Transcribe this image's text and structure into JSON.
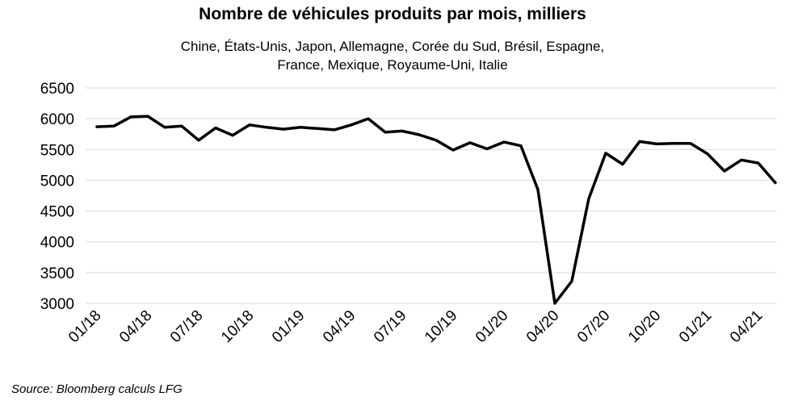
{
  "chart_data": {
    "type": "line",
    "title": "Nombre de véhicules produits par mois, milliers",
    "subtitle": "Chine, États-Unis, Japon, Allemagne, Corée du Sud, Brésil, Espagne, France, Mexique, Royaume-Uni, Italie",
    "source": "Source: Bloomberg calculs LFG",
    "ylim": [
      3000,
      6500
    ],
    "yticks": [
      3000,
      3500,
      4000,
      4500,
      5000,
      5500,
      6000,
      6500
    ],
    "ytick_labels": [
      "3000",
      "3500",
      "4000",
      "4500",
      "5000",
      "5500",
      "6000",
      "6500"
    ],
    "xtick_labels": [
      "01/18",
      "04/18",
      "07/18",
      "10/18",
      "01/19",
      "04/19",
      "07/19",
      "10/19",
      "01/20",
      "04/20",
      "07/20",
      "10/20",
      "01/21",
      "04/21"
    ],
    "grid": true,
    "line_color": "#000000",
    "grid_color": "#d9d9d9",
    "series": [
      {
        "x": [
          "01/18",
          "02/18",
          "03/18",
          "04/18",
          "05/18",
          "06/18",
          "07/18",
          "08/18",
          "09/18",
          "10/18",
          "11/18",
          "12/18",
          "01/19",
          "02/19",
          "03/19",
          "04/19",
          "05/19",
          "06/19",
          "07/19",
          "08/19",
          "09/19",
          "10/19",
          "11/19",
          "12/19",
          "01/20",
          "02/20",
          "03/20",
          "04/20",
          "05/20",
          "06/20",
          "07/20",
          "08/20",
          "09/20",
          "10/20",
          "11/20",
          "12/20",
          "01/21",
          "02/21",
          "03/21",
          "04/21",
          "05/21"
        ],
        "values": [
          5870,
          5880,
          6030,
          6040,
          5860,
          5880,
          5650,
          5850,
          5730,
          5900,
          5860,
          5830,
          5860,
          5840,
          5820,
          5900,
          6000,
          5780,
          5800,
          5740,
          5650,
          5490,
          5610,
          5510,
          5620,
          5560,
          4850,
          3000,
          3360,
          4700,
          5440,
          5260,
          5630,
          5590,
          5600,
          5600,
          5430,
          5150,
          5330,
          5280,
          4960
        ]
      }
    ]
  }
}
